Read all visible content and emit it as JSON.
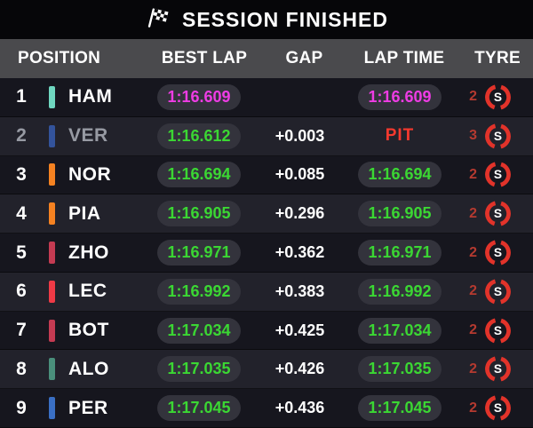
{
  "banner": {
    "title": "SESSION FINISHED"
  },
  "columns": {
    "position": "POSITION",
    "best_lap": "BEST LAP",
    "gap": "GAP",
    "lap_time": "LAP TIME",
    "tyre": "TYRE"
  },
  "colors": {
    "fastest_magenta": "#ee3ce4",
    "personal_best_green": "#3bd733",
    "pit_red": "#f5392e",
    "tyre_count_red": "#b53a30",
    "tyre_ring_red": "#e2332a",
    "dimmed_text": "#979aa3",
    "header_bg": "#4a4a4d",
    "row_dark": "#16161e",
    "row_light": "#22222b",
    "pill_bg": "#33333c"
  },
  "rows": [
    {
      "position": "1",
      "driver": "HAM",
      "team_color": "#6fd7c0",
      "best_lap": "1:16.609",
      "best_lap_style": "fastest",
      "gap": "",
      "lap_time": "1:16.609",
      "lap_time_style": "fastest",
      "lap_time_pill": true,
      "tyre_count": "2",
      "tyre_compound": "S",
      "dimmed": false
    },
    {
      "position": "2",
      "driver": "VER",
      "team_color": "#33539b",
      "best_lap": "1:16.612",
      "best_lap_style": "green",
      "gap": "+0.003",
      "lap_time": "PIT",
      "lap_time_style": "pit",
      "lap_time_pill": false,
      "tyre_count": "3",
      "tyre_compound": "S",
      "dimmed": true
    },
    {
      "position": "3",
      "driver": "NOR",
      "team_color": "#f58221",
      "best_lap": "1:16.694",
      "best_lap_style": "green",
      "gap": "+0.085",
      "lap_time": "1:16.694",
      "lap_time_style": "green",
      "lap_time_pill": true,
      "tyre_count": "2",
      "tyre_compound": "S",
      "dimmed": false
    },
    {
      "position": "4",
      "driver": "PIA",
      "team_color": "#f58221",
      "best_lap": "1:16.905",
      "best_lap_style": "green",
      "gap": "+0.296",
      "lap_time": "1:16.905",
      "lap_time_style": "green",
      "lap_time_pill": true,
      "tyre_count": "2",
      "tyre_compound": "S",
      "dimmed": false
    },
    {
      "position": "5",
      "driver": "ZHO",
      "team_color": "#c43b52",
      "best_lap": "1:16.971",
      "best_lap_style": "green",
      "gap": "+0.362",
      "lap_time": "1:16.971",
      "lap_time_style": "green",
      "lap_time_pill": true,
      "tyre_count": "2",
      "tyre_compound": "S",
      "dimmed": false
    },
    {
      "position": "6",
      "driver": "LEC",
      "team_color": "#ef3a46",
      "best_lap": "1:16.992",
      "best_lap_style": "green",
      "gap": "+0.383",
      "lap_time": "1:16.992",
      "lap_time_style": "green",
      "lap_time_pill": true,
      "tyre_count": "2",
      "tyre_compound": "S",
      "dimmed": false
    },
    {
      "position": "7",
      "driver": "BOT",
      "team_color": "#c43b52",
      "best_lap": "1:17.034",
      "best_lap_style": "green",
      "gap": "+0.425",
      "lap_time": "1:17.034",
      "lap_time_style": "green",
      "lap_time_pill": true,
      "tyre_count": "2",
      "tyre_compound": "S",
      "dimmed": false
    },
    {
      "position": "8",
      "driver": "ALO",
      "team_color": "#4a8f7b",
      "best_lap": "1:17.035",
      "best_lap_style": "green",
      "gap": "+0.426",
      "lap_time": "1:17.035",
      "lap_time_style": "green",
      "lap_time_pill": true,
      "tyre_count": "2",
      "tyre_compound": "S",
      "dimmed": false
    },
    {
      "position": "9",
      "driver": "PER",
      "team_color": "#3a6fc4",
      "best_lap": "1:17.045",
      "best_lap_style": "green",
      "gap": "+0.436",
      "lap_time": "1:17.045",
      "lap_time_style": "green",
      "lap_time_pill": true,
      "tyre_count": "2",
      "tyre_compound": "S",
      "dimmed": false
    }
  ]
}
